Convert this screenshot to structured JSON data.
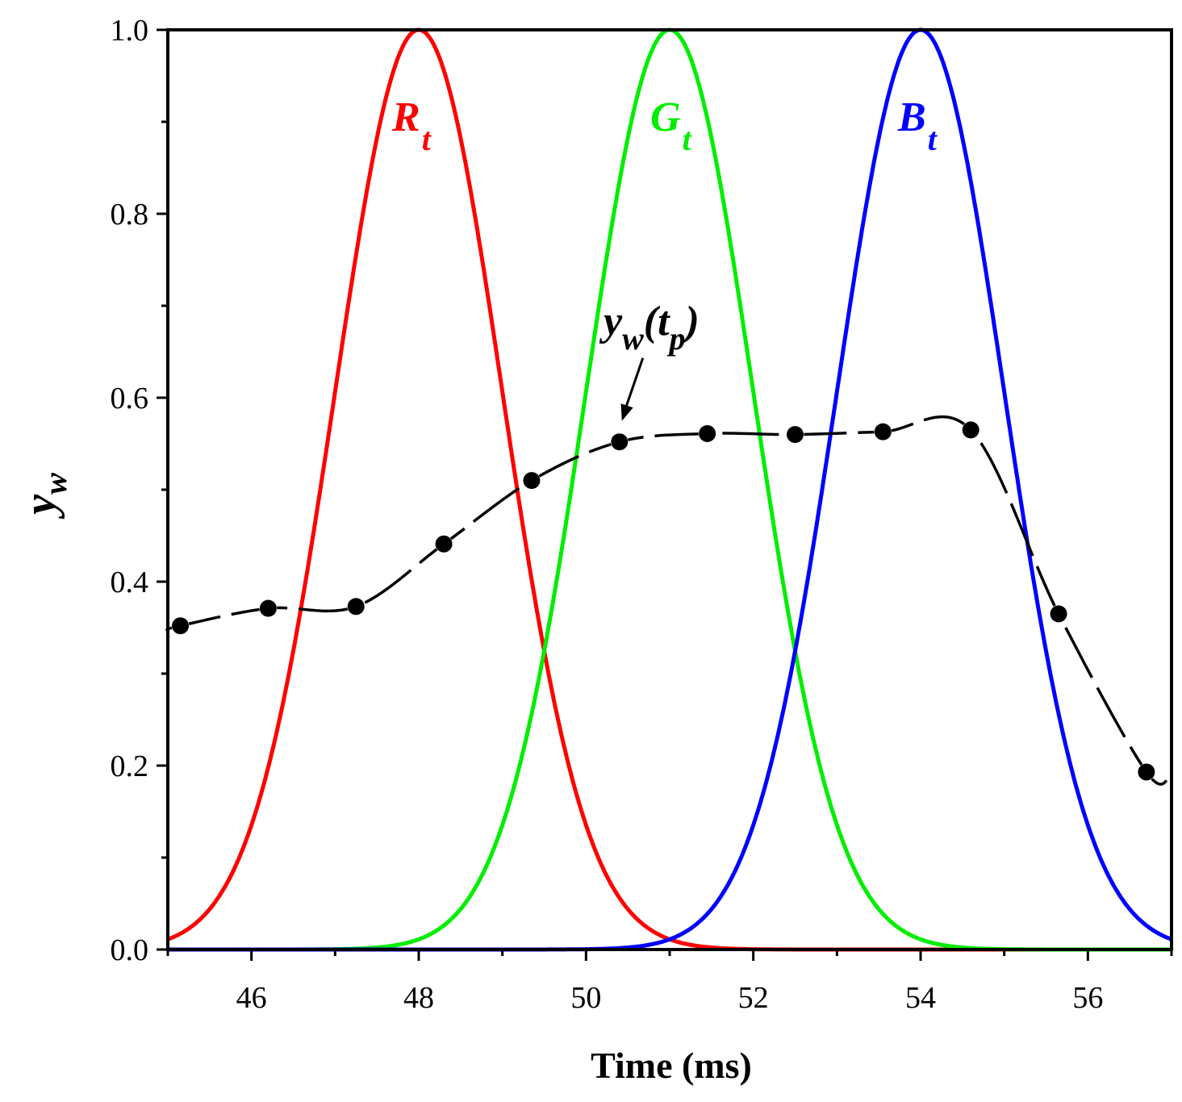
{
  "chart_data": {
    "type": "line",
    "title": "",
    "xlabel": "Time (ms)",
    "ylabel": {
      "main": "y",
      "sub": "w"
    },
    "xlim": [
      45,
      57
    ],
    "ylim": [
      0,
      1.0
    ],
    "x_major_ticks": [
      46,
      48,
      50,
      52,
      54,
      56
    ],
    "x_minor_ticks": [
      45,
      47,
      49,
      51,
      53,
      55,
      57
    ],
    "x_tick_labels": [
      "46",
      "48",
      "50",
      "52",
      "54",
      "56"
    ],
    "y_major_ticks": [
      0.0,
      0.2,
      0.4,
      0.6,
      0.8,
      1.0
    ],
    "y_minor_ticks": [
      0.1,
      0.3,
      0.5,
      0.7,
      0.9
    ],
    "y_tick_labels": [
      "0.0",
      "0.2",
      "0.4",
      "0.6",
      "0.8",
      "1.0"
    ],
    "grid": false,
    "series": [
      {
        "name": "R_t",
        "label_main": "R",
        "label_sub": "t",
        "kind": "gaussian",
        "center": 48,
        "peak": 1.0,
        "sigma": 1.0,
        "color": "#ff0000"
      },
      {
        "name": "G_t",
        "label_main": "G",
        "label_sub": "t",
        "kind": "gaussian",
        "center": 51,
        "peak": 1.0,
        "sigma": 1.0,
        "color": "#00ee00"
      },
      {
        "name": "B_t",
        "label_main": "B",
        "label_sub": "t",
        "kind": "gaussian",
        "center": 54,
        "peak": 1.0,
        "sigma": 1.0,
        "color": "#0000ff"
      },
      {
        "name": "y_w(t_p)",
        "kind": "markers-dashed",
        "color": "#000000",
        "x": [
          45.15,
          46.2,
          47.25,
          48.3,
          49.35,
          50.4,
          51.45,
          52.5,
          53.55,
          54.6,
          55.65,
          56.7
        ],
        "y": [
          0.352,
          0.371,
          0.373,
          0.441,
          0.51,
          0.552,
          0.561,
          0.56,
          0.563,
          0.565,
          0.365,
          0.193
        ]
      }
    ],
    "annotations": [
      {
        "text_main": "y",
        "text_sub": "w",
        "text_rest": "(t",
        "text_sub2": "p",
        "text_close": ")",
        "points_to": {
          "x": 50.4,
          "y": 0.552
        }
      }
    ]
  }
}
